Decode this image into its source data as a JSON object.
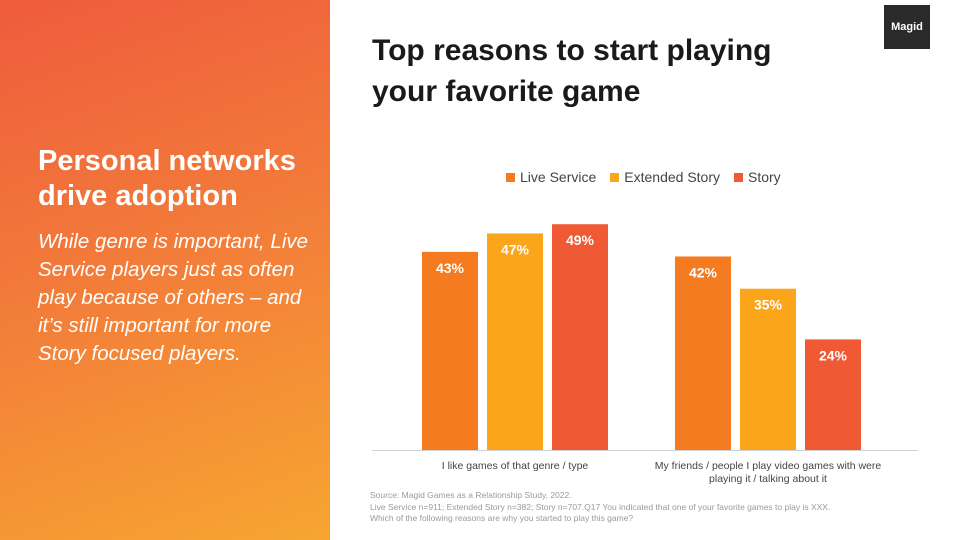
{
  "left_panel": {
    "heading": "Personal networks drive adoption",
    "body": "While genre is important, Live Service players just as often play because of others – and it’s still important for more Story focused players."
  },
  "logo": "Magid",
  "colors": {
    "live_service": "#f47b20",
    "extended_story": "#fba51a",
    "story": "#ef5934",
    "bar_label": "#ffffff"
  },
  "chart_data": {
    "type": "bar",
    "title": "Top reasons to start playing your favorite game",
    "categories": [
      [
        "I like games of that genre / type"
      ],
      [
        "My friends / people I play video games with were",
        "playing it / talking about it"
      ]
    ],
    "series": [
      {
        "name": "Live Service",
        "values": [
          43,
          42
        ],
        "labels": [
          "43%",
          "42%"
        ],
        "color": "#f47b20"
      },
      {
        "name": "Extended Story",
        "values": [
          47,
          35
        ],
        "labels": [
          "47%",
          "35%"
        ],
        "color": "#fba51a"
      },
      {
        "name": "Story",
        "values": [
          49,
          24
        ],
        "labels": [
          "49%",
          "24%"
        ],
        "color": "#ef5934"
      }
    ],
    "ylim": [
      0,
      51
    ],
    "grid": false,
    "legend_position": "top"
  },
  "source": [
    "Source: Magid Games as a Relationship Study, 2022.",
    "Live Service n=911; Extended Story n=382; Story n=707.Q17 You indicated that one of your favorite games to play is XXX.",
    "Which of the following reasons are why you started to play this game?"
  ]
}
